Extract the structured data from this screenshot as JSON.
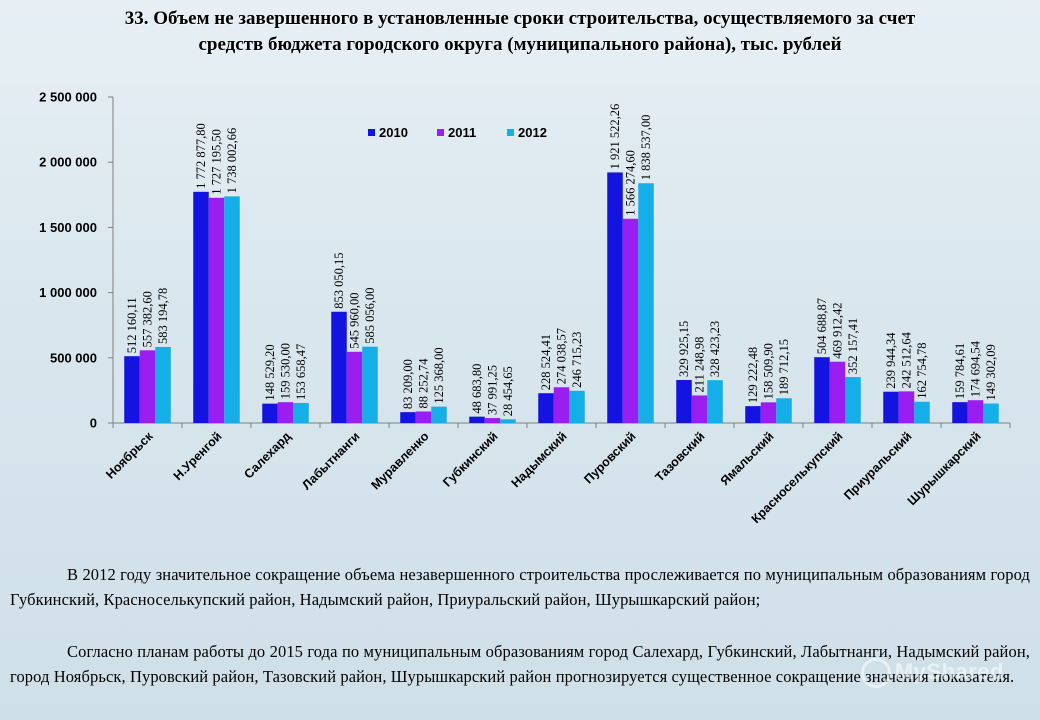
{
  "title": {
    "line1": "33. Объем не завершенного в установленные сроки строительства, осуществляемого за счет",
    "line2": "средств бюджета городского округа (муниципального района), тыс. рублей"
  },
  "chart_data": {
    "type": "bar",
    "ylim": [
      0,
      2500000
    ],
    "y_ticks": [
      0,
      500000,
      1000000,
      1500000,
      2000000,
      2500000
    ],
    "y_tick_labels": [
      "0",
      "500 000",
      "1 000 000",
      "1 500 000",
      "2 000 000",
      "2 500 000"
    ],
    "grid": false,
    "legend_position": "top-center",
    "categories": [
      "Ноябрьск",
      "Н.Уренгой",
      "Салехард",
      "Лабытнанги",
      "Муравленко",
      "Губкинский",
      "Надымский",
      "Пуровский",
      "Тазовский",
      "Ямальский",
      "Красноселькупский",
      "Приуральский",
      "Шурышкарский"
    ],
    "series": [
      {
        "name": "2010",
        "color": "#1414e0",
        "values": [
          512160.11,
          1772877.8,
          148529.2,
          853050.15,
          83209.0,
          48683.8,
          228524.41,
          1921522.26,
          329925.15,
          129222.48,
          504688.87,
          239944.34,
          159784.61
        ],
        "labels": [
          "512 160,11",
          "1 772 877,80",
          "148 529,20",
          "853 050,15",
          "83 209,00",
          "48 683,80",
          "228 524,41",
          "1 921 522,26",
          "329 925,15",
          "129 222,48",
          "504 688,87",
          "239 944,34",
          "159 784,61"
        ]
      },
      {
        "name": "2011",
        "color": "#9a1ef0",
        "values": [
          557382.6,
          1727195.5,
          159530.0,
          545960.0,
          88252.74,
          37991.25,
          274038.57,
          1566274.6,
          211248.98,
          158509.9,
          469912.42,
          242512.64,
          174694.54
        ],
        "labels": [
          "557 382,60",
          "1 727 195,50",
          "159 530,00",
          "545 960,00",
          "88 252,74",
          "37 991,25",
          "274 038,57",
          "1 566 274,60",
          "211 248,98",
          "158 509,90",
          "469 912,42",
          "242 512,64",
          "174 694,54"
        ]
      },
      {
        "name": "2012",
        "color": "#14aee8",
        "values": [
          583194.78,
          1738002.66,
          153658.47,
          585056.0,
          125368.0,
          28454.65,
          246715.23,
          1838537.0,
          328423.23,
          189712.15,
          352157.41,
          162754.78,
          149302.09
        ],
        "labels": [
          "583 194,78",
          "1 738 002,66",
          "153 658,47",
          "585 056,00",
          "125 368,00",
          "28 454,65",
          "246 715,23",
          "1 838 537,00",
          "328 423,23",
          "189 712,15",
          "352 157,41",
          "162 754,78",
          "149 302,09"
        ]
      }
    ]
  },
  "text": {
    "para1": "В 2012 году значительное сокращение объема незавершенного строительства прослеживается по муниципальным образованиям город Губкинский, Красноселькупский район, Надымский район, Приуральский район, Шурышкарский район;",
    "para2": "Согласно планам работы до 2015 года по муниципальным образованиям город Салехард, Губкинский, Лабытнанги, Надымский район, город Ноябрьск, Пуровский район, Тазовский район, Шурышкарский район прогнозируется существенное сокращение значения показателя."
  },
  "watermark": "MyShared"
}
